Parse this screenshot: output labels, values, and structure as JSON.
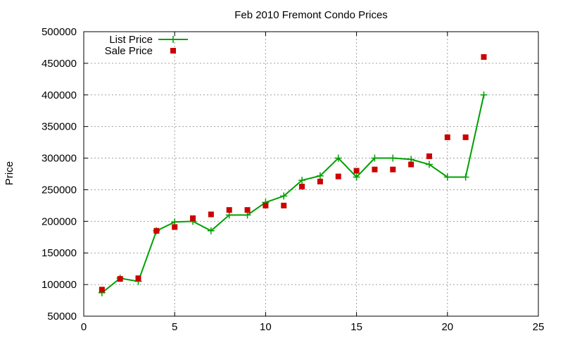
{
  "chart_data": {
    "type": "line",
    "title": "Feb 2010 Fremont Condo Prices",
    "xlabel": "",
    "ylabel": "Price",
    "xlim": [
      0,
      25
    ],
    "ylim": [
      50000,
      500000
    ],
    "xticks": [
      0,
      5,
      10,
      15,
      20,
      25
    ],
    "yticks": [
      50000,
      100000,
      150000,
      200000,
      250000,
      300000,
      350000,
      400000,
      450000,
      500000
    ],
    "grid": true,
    "legend_position": "top-left",
    "series": [
      {
        "name": "List Price",
        "style": "line-points",
        "color": "#00a000",
        "x": [
          1,
          2,
          3,
          4,
          5,
          6,
          7,
          8,
          9,
          10,
          11,
          12,
          13,
          14,
          15,
          16,
          17,
          18,
          19,
          20,
          21,
          22
        ],
        "y": [
          87000,
          110000,
          105000,
          185000,
          199000,
          200000,
          185000,
          210000,
          210000,
          230000,
          240000,
          265000,
          272000,
          300000,
          270000,
          300000,
          300000,
          298000,
          290000,
          270000,
          270000,
          400000
        ]
      },
      {
        "name": "Sale Price",
        "style": "points",
        "color": "#cc0000",
        "x": [
          1,
          2,
          3,
          4,
          5,
          6,
          7,
          8,
          9,
          10,
          11,
          12,
          13,
          14,
          15,
          16,
          17,
          18,
          19,
          20,
          21,
          22
        ],
        "y": [
          92000,
          109000,
          110000,
          185000,
          191000,
          205000,
          211000,
          218000,
          218000,
          225000,
          225000,
          255000,
          263000,
          271000,
          280000,
          282000,
          282000,
          290000,
          303000,
          333000,
          333000,
          460000
        ]
      }
    ]
  }
}
